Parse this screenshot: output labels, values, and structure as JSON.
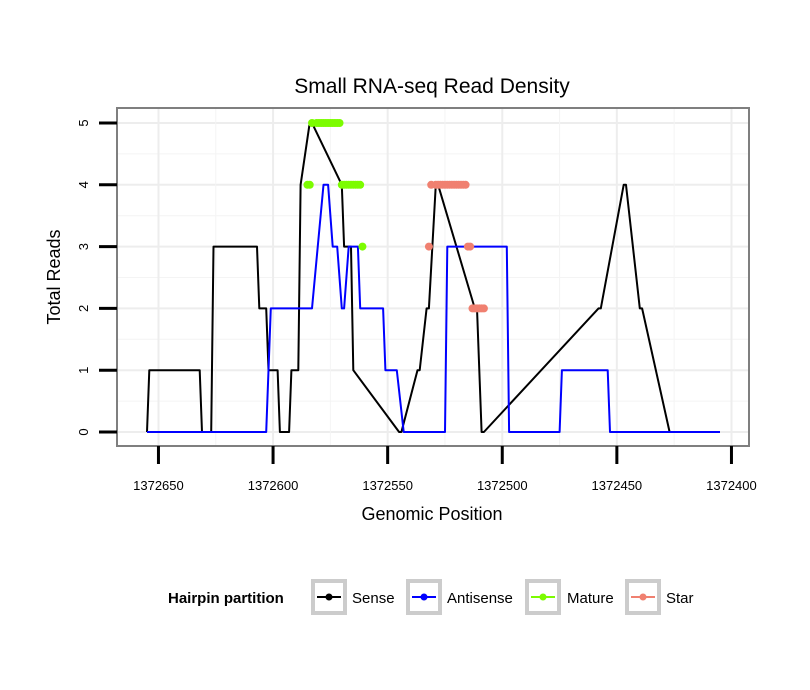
{
  "chart_data": {
    "type": "line",
    "title": "Small RNA-seq Read Density",
    "xlabel": "Genomic Position",
    "ylabel": "Total Reads",
    "x_reversed": true,
    "xlim": [
      1372400,
      1372660
    ],
    "ylim": [
      0,
      5
    ],
    "x_ticks": [
      1372650,
      1372600,
      1372550,
      1372500,
      1372450,
      1372400
    ],
    "x_tick_labels": [
      "1372650",
      "1372600",
      "1372550",
      "1372500",
      "1372450",
      "1372400"
    ],
    "y_ticks": [
      0,
      1,
      2,
      3,
      4,
      5
    ],
    "y_tick_labels": [
      "0",
      "1",
      "2",
      "3",
      "4",
      "5"
    ],
    "grid": true,
    "legend": {
      "title": "Hairpin partition",
      "position": "bottom",
      "entries": [
        "Sense",
        "Antisense",
        "Mature",
        "Star"
      ]
    },
    "series": [
      {
        "name": "Sense",
        "color": "#000000",
        "style": "line",
        "x": [
          1372655,
          1372654,
          1372632,
          1372631,
          1372627,
          1372626,
          1372607,
          1372606,
          1372603,
          1372602,
          1372598,
          1372597,
          1372593,
          1372592,
          1372589,
          1372588,
          1372584,
          1372583,
          1372570,
          1372569,
          1372566,
          1372565,
          1372545,
          1372544,
          1372537,
          1372536,
          1372533,
          1372532,
          1372529,
          1372528,
          1372512,
          1372511,
          1372509,
          1372508,
          1372458,
          1372457,
          1372447,
          1372446,
          1372440,
          1372439,
          1372427,
          1372426,
          1372405
        ],
        "y": [
          0,
          1,
          1,
          0,
          0,
          3,
          3,
          2,
          2,
          1,
          1,
          0,
          0,
          1,
          1,
          4,
          5,
          5,
          4,
          3,
          3,
          1,
          0,
          0,
          1,
          1,
          2,
          2,
          4,
          4,
          2,
          2,
          0,
          0,
          2,
          2,
          4,
          4,
          2,
          2,
          0,
          0,
          0
        ]
      },
      {
        "name": "Antisense",
        "color": "#0000ff",
        "style": "line",
        "x": [
          1372655,
          1372603,
          1372601,
          1372583,
          1372578,
          1372576,
          1372574,
          1372572,
          1372570,
          1372569,
          1372567,
          1372563,
          1372562,
          1372552,
          1372551,
          1372546,
          1372543,
          1372525,
          1372524,
          1372498,
          1372497,
          1372475,
          1372474,
          1372454,
          1372453,
          1372405
        ],
        "y": [
          0,
          0,
          2,
          2,
          4,
          4,
          3,
          3,
          2,
          2,
          3,
          3,
          2,
          2,
          1,
          1,
          0,
          0,
          3,
          3,
          0,
          0,
          1,
          1,
          0,
          0
        ]
      },
      {
        "name": "Mature",
        "color": "#7cfc00",
        "style": "points",
        "x": [
          1372585,
          1372584,
          1372583,
          1372581,
          1372580,
          1372579,
          1372578,
          1372577,
          1372576,
          1372575,
          1372574,
          1372573,
          1372572,
          1372571,
          1372570,
          1372569,
          1372568,
          1372567,
          1372566,
          1372565,
          1372564,
          1372563,
          1372562,
          1372561
        ],
        "y": [
          4,
          4,
          5,
          5,
          5,
          5,
          5,
          5,
          5,
          5,
          5,
          5,
          5,
          5,
          4,
          4,
          4,
          4,
          4,
          4,
          4,
          4,
          4,
          3
        ]
      },
      {
        "name": "Star",
        "color": "#f08070",
        "style": "points",
        "x": [
          1372532,
          1372531,
          1372529,
          1372528,
          1372527,
          1372526,
          1372525,
          1372524,
          1372523,
          1372522,
          1372521,
          1372520,
          1372519,
          1372518,
          1372517,
          1372516,
          1372515,
          1372514,
          1372513,
          1372512,
          1372511,
          1372510,
          1372509,
          1372508
        ],
        "y": [
          3,
          4,
          4,
          4,
          4,
          4,
          4,
          4,
          4,
          4,
          4,
          4,
          4,
          4,
          4,
          4,
          3,
          3,
          2,
          2,
          2,
          2,
          2,
          2
        ]
      }
    ]
  }
}
